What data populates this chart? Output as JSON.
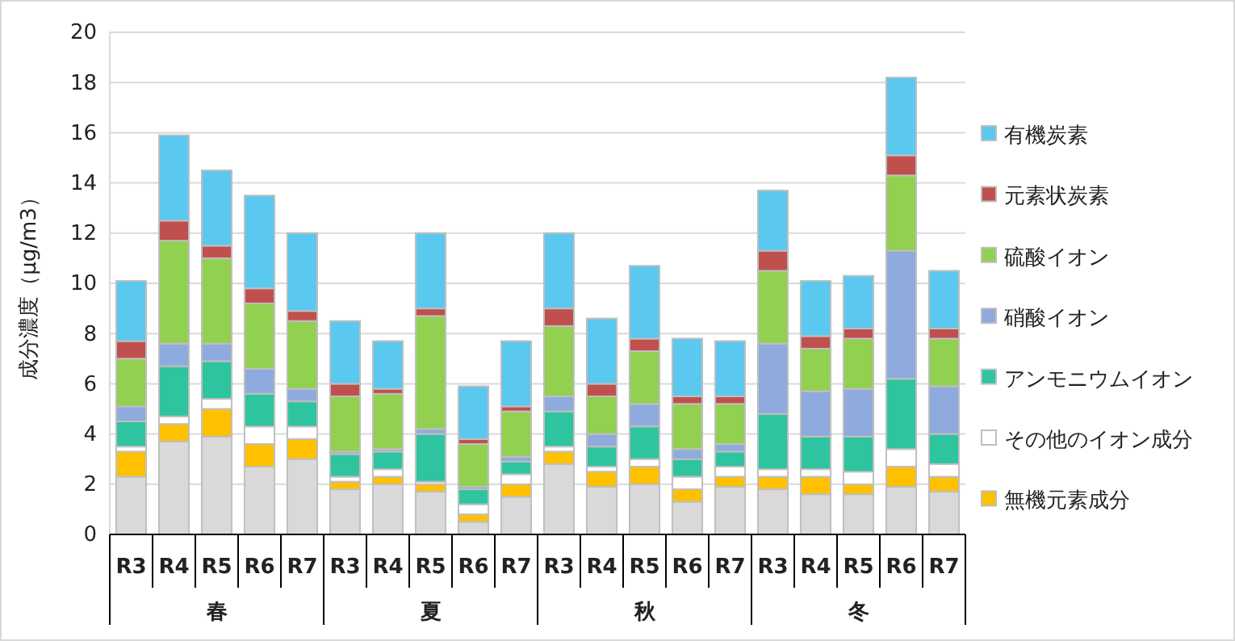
{
  "chart_data": {
    "type": "bar",
    "stacked": true,
    "ylabel": "成分濃度（μg/m3）",
    "categories": [
      "R3",
      "R4",
      "R5",
      "R6",
      "R7",
      "R3",
      "R4",
      "R5",
      "R6",
      "R7",
      "R3",
      "R4",
      "R5",
      "R6",
      "R7",
      "R3",
      "R4",
      "R5",
      "R6",
      "R7"
    ],
    "annotations": [
      "春",
      "夏",
      "秋",
      "冬"
    ],
    "ylim": [
      0,
      20
    ],
    "yticks": [
      0,
      2,
      4,
      6,
      8,
      10,
      12,
      14,
      16,
      18,
      20
    ],
    "grid": "y",
    "legend": "right",
    "series": [
      {
        "color": "#d9d9d9",
        "values": [
          2.3,
          3.7,
          3.9,
          2.7,
          3.0,
          1.8,
          2.0,
          1.7,
          0.5,
          1.5,
          2.8,
          1.9,
          2.0,
          1.3,
          1.9,
          1.8,
          1.6,
          1.6,
          1.9,
          1.7
        ]
      },
      {
        "name": "無機元素成分",
        "color": "#ffc000",
        "values": [
          1.0,
          0.7,
          1.1,
          0.9,
          0.8,
          0.3,
          0.3,
          0.3,
          0.3,
          0.5,
          0.5,
          0.6,
          0.7,
          0.5,
          0.4,
          0.5,
          0.7,
          0.4,
          0.8,
          0.6
        ]
      },
      {
        "name": "その他のイオン成分",
        "color": "#ffffff",
        "values": [
          0.2,
          0.3,
          0.4,
          0.7,
          0.5,
          0.2,
          0.3,
          0.1,
          0.4,
          0.4,
          0.2,
          0.2,
          0.3,
          0.5,
          0.4,
          0.3,
          0.3,
          0.5,
          0.7,
          0.5
        ]
      },
      {
        "name": "アンモニウムイオン",
        "color": "#2ec4a0",
        "values": [
          1.0,
          2.0,
          1.5,
          1.3,
          1.0,
          0.9,
          0.7,
          1.9,
          0.6,
          0.5,
          1.4,
          0.8,
          1.3,
          0.7,
          0.6,
          2.2,
          1.3,
          1.4,
          2.8,
          1.2
        ]
      },
      {
        "name": "硝酸イオン",
        "color": "#8faadc",
        "values": [
          0.6,
          0.9,
          0.7,
          1.0,
          0.5,
          0.1,
          0.1,
          0.2,
          0.1,
          0.2,
          0.6,
          0.5,
          0.9,
          0.4,
          0.3,
          2.8,
          1.8,
          1.9,
          5.1,
          1.9
        ]
      },
      {
        "name": "硫酸イオン",
        "color": "#92d050",
        "values": [
          1.9,
          4.1,
          3.4,
          2.6,
          2.7,
          2.2,
          2.2,
          4.5,
          1.7,
          1.8,
          2.8,
          1.5,
          2.1,
          1.8,
          1.6,
          2.9,
          1.7,
          2.0,
          3.0,
          1.9
        ]
      },
      {
        "name": "元素状炭素",
        "color": "#c0504d",
        "values": [
          0.7,
          0.8,
          0.5,
          0.6,
          0.4,
          0.5,
          0.2,
          0.3,
          0.2,
          0.2,
          0.7,
          0.5,
          0.5,
          0.3,
          0.3,
          0.8,
          0.5,
          0.4,
          0.8,
          0.4
        ]
      },
      {
        "name": "有機炭素",
        "color": "#5bc8f0",
        "values": [
          2.4,
          3.4,
          3.0,
          3.7,
          3.1,
          2.5,
          1.9,
          3.0,
          2.1,
          2.6,
          3.0,
          2.6,
          2.9,
          2.3,
          2.2,
          2.4,
          2.2,
          2.1,
          3.1,
          2.3
        ]
      }
    ]
  }
}
